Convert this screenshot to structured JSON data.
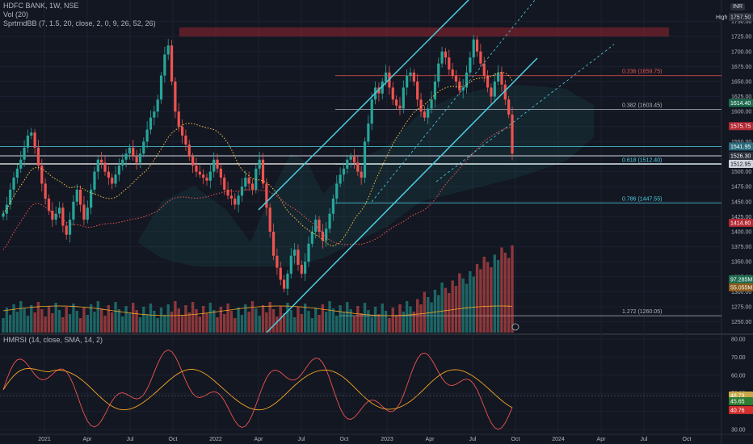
{
  "legend": {
    "symbol": "HDFC BANK, 1W, NSE",
    "volume": "Vol (20)",
    "indicator": "SprtrndBB (7, 1.5, 20, close, 2, 0, 9, 26, 52, 26)",
    "rsi": "HMRSI (14, close, SMA, 14, 2)"
  },
  "currency_badge": "INR",
  "chart_data": [
    {
      "type": "candlestick",
      "title": "HDFC BANK, 1W, NSE",
      "ylim": [
        1232,
        1775
      ],
      "y_ticks": [
        1250,
        1275,
        1300,
        1325,
        1350,
        1375,
        1400,
        1425,
        1450,
        1475,
        1500,
        1525,
        1550,
        1575,
        1600,
        1625,
        1650,
        1675,
        1700,
        1725,
        1750
      ],
      "x_ticks": [
        "2021",
        "Apr",
        "Jul",
        "Oct",
        "2022",
        "Apr",
        "Jul",
        "Oct",
        "2023",
        "Apr",
        "Jul",
        "Oct",
        "2024",
        "Apr",
        "Jul",
        "Oct"
      ],
      "high_label": "High",
      "high_value": "1757.50",
      "price_badges": [
        {
          "label": "1614.40",
          "value": 1614.4,
          "color": "#1e6b4f"
        },
        {
          "label": "1575.75",
          "value": 1575.75,
          "color": "#b22833"
        },
        {
          "label": "1541.95",
          "value": 1541.95,
          "color": "#2a6b7c"
        },
        {
          "label": "1526.30",
          "value": 1526.3,
          "color": "#2a2e39"
        },
        {
          "label": "1512.95",
          "value": 1512.95,
          "color": "#d1d4dc"
        },
        {
          "label": "1414.80",
          "value": 1414.8,
          "color": "#b22833"
        }
      ],
      "fib_levels": [
        {
          "label": "0.236 (1659.75)",
          "value": 1659.75,
          "color": "#ef5350"
        },
        {
          "label": "0.382 (1603.45)",
          "value": 1603.45,
          "color": "#b2b5be"
        },
        {
          "label": "0.618 (1512.40)",
          "value": 1512.4,
          "color": "#4dd0e1"
        },
        {
          "label": "0.786 (1447.55)",
          "value": 1447.55,
          "color": "#4dd0e1"
        },
        {
          "label": "1.272 (1260.05)",
          "value": 1260.05,
          "color": "#b2b5be"
        }
      ],
      "volume_badges": [
        "97.285M",
        "55.055M"
      ],
      "resistance_zone": [
        1725,
        1740
      ],
      "colors": {
        "up": "#26a69a",
        "down": "#ef5350",
        "channel": "#4dd0e1"
      },
      "closes": [
        1430,
        1445,
        1470,
        1490,
        1505,
        1520,
        1540,
        1560,
        1565,
        1540,
        1510,
        1480,
        1455,
        1435,
        1420,
        1430,
        1440,
        1410,
        1395,
        1420,
        1450,
        1470,
        1445,
        1420,
        1440,
        1470,
        1500,
        1520,
        1515,
        1500,
        1490,
        1480,
        1495,
        1510,
        1520,
        1530,
        1540,
        1525,
        1515,
        1530,
        1550,
        1570,
        1590,
        1600,
        1620,
        1660,
        1695,
        1710,
        1650,
        1600,
        1575,
        1560,
        1545,
        1525,
        1510,
        1500,
        1495,
        1490,
        1485,
        1500,
        1520,
        1505,
        1490,
        1470,
        1460,
        1455,
        1445,
        1460,
        1475,
        1490,
        1480,
        1470,
        1505,
        1520,
        1480,
        1440,
        1400,
        1360,
        1340,
        1320,
        1305,
        1330,
        1360,
        1370,
        1345,
        1330,
        1350,
        1380,
        1400,
        1420,
        1400,
        1385,
        1405,
        1430,
        1455,
        1480,
        1495,
        1505,
        1520,
        1525,
        1515,
        1500,
        1490,
        1550,
        1580,
        1620,
        1640,
        1630,
        1650,
        1665,
        1640,
        1620,
        1610,
        1605,
        1640,
        1660,
        1665,
        1650,
        1620,
        1600,
        1590,
        1605,
        1620,
        1650,
        1680,
        1700,
        1690,
        1670,
        1660,
        1650,
        1635,
        1640,
        1665,
        1690,
        1720,
        1700,
        1680,
        1660,
        1640,
        1625,
        1650,
        1665,
        1645,
        1620,
        1595,
        1530
      ]
    },
    {
      "type": "line",
      "title": "HMRSI (14, close, SMA, 14, 2)",
      "ylim": [
        30,
        80
      ],
      "y_ticks": [
        30,
        40,
        50,
        60,
        70,
        80
      ],
      "badges": [
        {
          "label": "48.73",
          "value": 48.73,
          "color": "#c8a84b"
        },
        {
          "label": "45.65",
          "value": 45.65,
          "color": "#2e7d32"
        },
        {
          "label": "40.76",
          "value": 40.76,
          "color": "#d32f2f"
        }
      ]
    }
  ]
}
